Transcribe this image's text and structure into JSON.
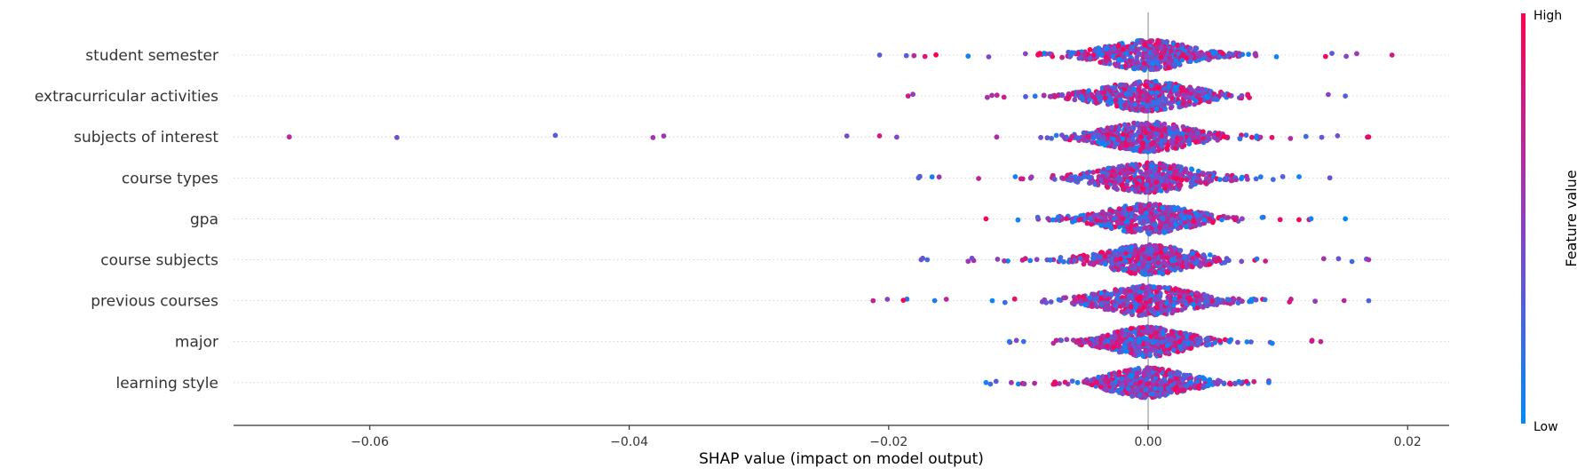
{
  "chart_data": {
    "type": "scatter",
    "style": "shap-beeswarm",
    "features": [
      {
        "name": "student semester",
        "min": -0.0207,
        "max": 0.0188,
        "spread": 0.0028,
        "core_halfwidth": 0.0048
      },
      {
        "name": "extracurricular activities",
        "min": -0.0185,
        "max": 0.0152,
        "spread": 0.003,
        "core_halfwidth": 0.0045
      },
      {
        "name": "subjects of interest",
        "min": -0.0662,
        "max": 0.017,
        "spread": 0.0028,
        "core_halfwidth": 0.003
      },
      {
        "name": "course types",
        "min": -0.0177,
        "max": 0.014,
        "spread": 0.003,
        "core_halfwidth": 0.0032
      },
      {
        "name": "gpa",
        "min": -0.0125,
        "max": 0.0152,
        "spread": 0.0028,
        "core_halfwidth": 0.0032
      },
      {
        "name": "course subjects",
        "min": -0.0175,
        "max": 0.017,
        "spread": 0.0028,
        "core_halfwidth": 0.003
      },
      {
        "name": "previous courses",
        "min": -0.0212,
        "max": 0.017,
        "spread": 0.003,
        "core_halfwidth": 0.0035
      },
      {
        "name": "major",
        "min": -0.0107,
        "max": 0.0133,
        "spread": 0.0025,
        "core_halfwidth": 0.0025
      },
      {
        "name": "learning style",
        "min": -0.0125,
        "max": 0.0093,
        "spread": 0.0025,
        "core_halfwidth": 0.0025
      }
    ],
    "xlim": [
      -0.0705,
      0.0232
    ],
    "xticks": [
      -0.06,
      -0.04,
      -0.02,
      0.0,
      0.02
    ],
    "xtick_labels": [
      "−0.06",
      "−0.04",
      "−0.02",
      "0.00",
      "0.02"
    ],
    "xlabel": "SHAP value (impact on model output)",
    "colorbar": {
      "title": "Feature value",
      "high_label": "High",
      "low_label": "Low",
      "low_color": "#008bfb",
      "high_color": "#ff0052",
      "mid_color": "#8f3fc0"
    },
    "zero_line": true,
    "grid": "dotted horizontal per feature"
  }
}
